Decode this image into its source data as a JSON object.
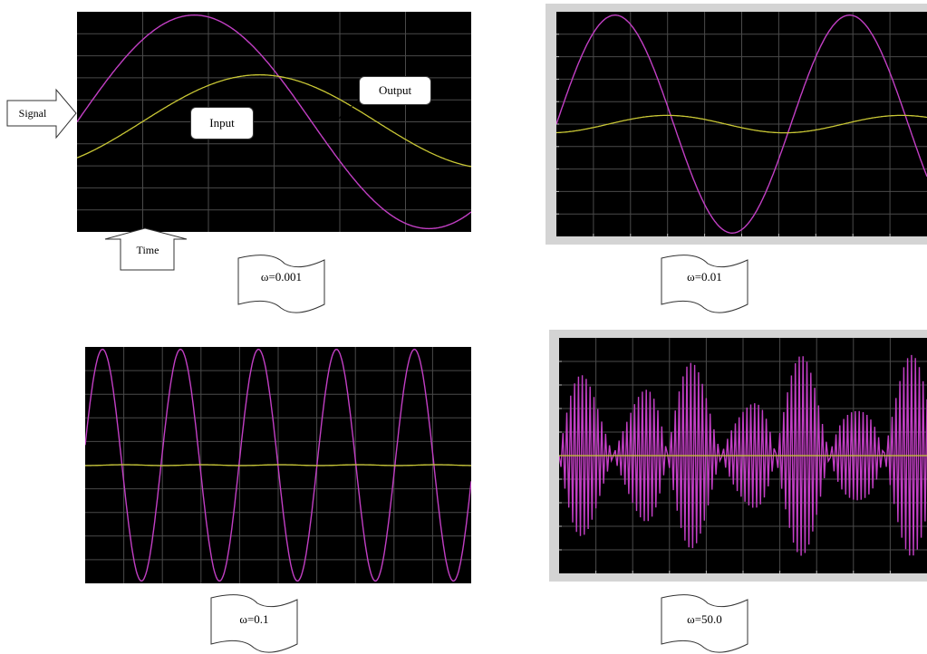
{
  "colors": {
    "input": "#c23fc4",
    "output": "#c9c735",
    "background": "#000000",
    "grid": "#4a4a4a"
  },
  "annotations": {
    "signal": "Signal",
    "time": "Time",
    "input": "Input",
    "output": "Output"
  },
  "chart_data": [
    {
      "type": "line",
      "label": "ω=0.001",
      "grid": true,
      "series": [
        {
          "name": "Input",
          "amplitude": 1.0,
          "cycles_visible": 0.84,
          "phase_deg": 0
        },
        {
          "name": "Output",
          "amplitude": 0.44,
          "cycles_visible": 0.84,
          "phase_deg": -50
        }
      ]
    },
    {
      "type": "line",
      "label": "ω=0.01",
      "grid": true,
      "series": [
        {
          "name": "Input",
          "amplitude": 1.0,
          "cycles_visible": 1.58,
          "phase_deg": 0
        },
        {
          "name": "Output",
          "amplitude": 0.08,
          "cycles_visible": 1.58,
          "phase_deg": -80
        }
      ]
    },
    {
      "type": "line",
      "label": "ω=0.1",
      "grid": true,
      "series": [
        {
          "name": "Input",
          "amplitude": 1.0,
          "cycles_visible": 4.95,
          "phase_deg": 10
        },
        {
          "name": "Output",
          "amplitude": 0.004,
          "cycles_visible": 4.95,
          "phase_deg": -90
        }
      ]
    },
    {
      "type": "line",
      "label": "ω=50.0",
      "grid": true,
      "series": [
        {
          "name": "Input",
          "amplitude": 1.0,
          "cycles_visible": 48,
          "phase_deg": 0,
          "aliased": true
        },
        {
          "name": "Output",
          "amplitude": 0.0,
          "cycles_visible": 48,
          "phase_deg": 0
        }
      ]
    }
  ]
}
